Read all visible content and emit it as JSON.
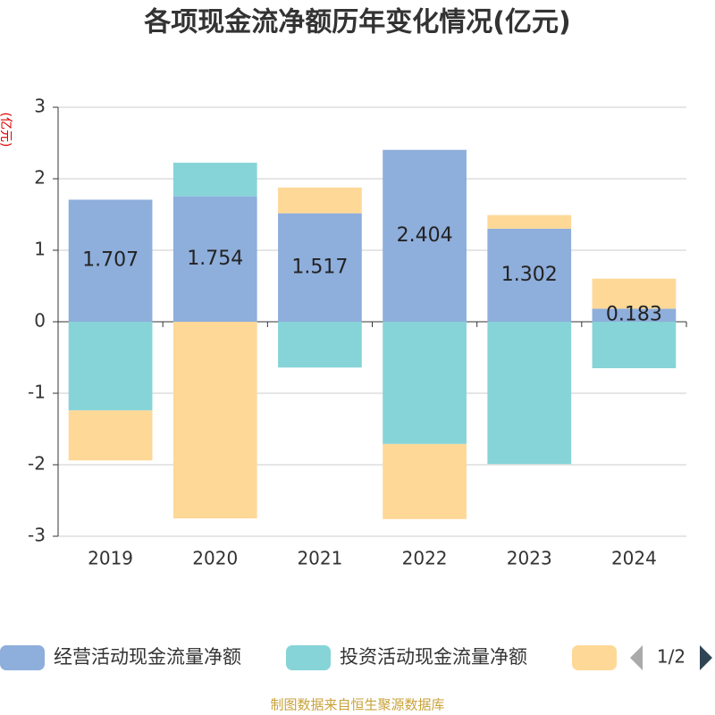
{
  "chart_data": {
    "type": "bar",
    "title": "各项现金流净额历年变化情况(亿元)",
    "y_label": "(亿元)",
    "stacked": true,
    "categories": [
      "2019",
      "2020",
      "2021",
      "2022",
      "2023",
      "2024"
    ],
    "series": [
      {
        "name": "经营活动现金流量净额",
        "color": "#8eaedb",
        "values": [
          1.707,
          1.754,
          1.517,
          2.404,
          1.302,
          0.183
        ],
        "show_labels": true
      },
      {
        "name": "投资活动现金流量净额",
        "color": "#86d4d8",
        "values": [
          -1.24,
          0.47,
          -0.64,
          -1.71,
          -1.99,
          -0.65
        ]
      },
      {
        "color": "#fed897",
        "values": [
          -0.7,
          -2.75,
          0.36,
          -1.05,
          0.19,
          0.42
        ]
      }
    ],
    "ylim": [
      -3,
      3
    ],
    "yticks": [
      -3,
      -2,
      -1,
      0,
      1,
      2,
      3
    ],
    "grid": true,
    "legend_page": "1/2",
    "source": "制图数据来自恒生聚源数据库"
  }
}
